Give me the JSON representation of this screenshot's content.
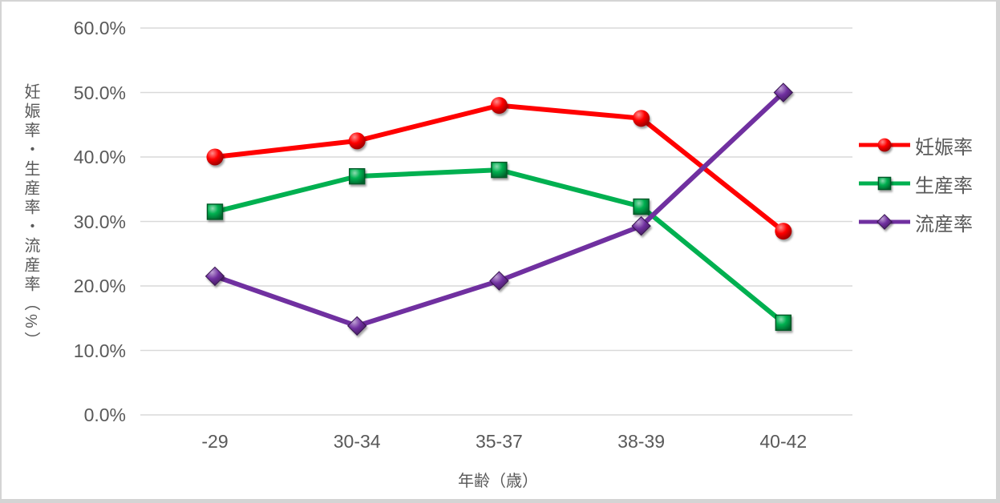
{
  "window": {
    "background": "#ffffff",
    "frame_color": "#d4d4d4"
  },
  "chart_data": {
    "type": "line",
    "title": "",
    "xlabel": "年齢（歳）",
    "ylabel": "妊娠率・生産率・流産率（%）",
    "categories": [
      "-29",
      "30-34",
      "35-37",
      "38-39",
      "40-42"
    ],
    "ylim": [
      0,
      60
    ],
    "ytick_labels": [
      "0.0%",
      "10.0%",
      "20.0%",
      "30.0%",
      "40.0%",
      "50.0%",
      "60.0%"
    ],
    "grid": true,
    "gridline_color": "#D9D9D9",
    "text_color": "#595959",
    "legend_position": "right",
    "series": [
      {
        "name": "妊娠率",
        "marker": "circle",
        "color": "#FF0000",
        "values": [
          40.0,
          42.5,
          48.0,
          46.0,
          28.5
        ]
      },
      {
        "name": "生産率",
        "marker": "square",
        "color": "#00B050",
        "values": [
          31.5,
          37.0,
          38.0,
          32.3,
          14.3
        ]
      },
      {
        "name": "流産率",
        "marker": "diamond",
        "color": "#7030A0",
        "values": [
          21.5,
          13.8,
          20.8,
          29.3,
          50.0
        ]
      }
    ]
  }
}
